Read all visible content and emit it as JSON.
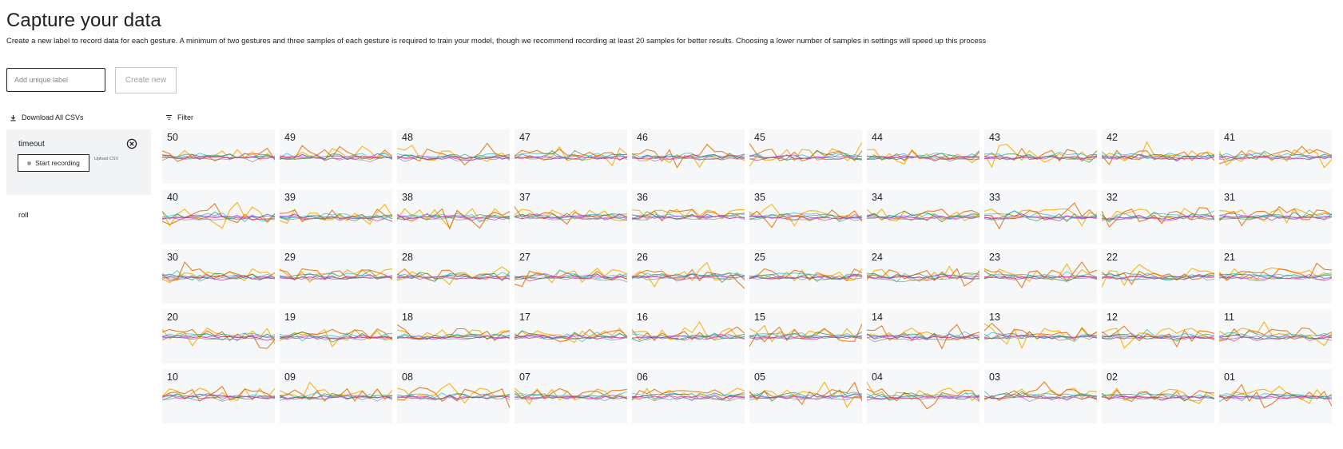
{
  "header": {
    "title": "Capture your data",
    "subtitle": "Create a new label to record data for each gesture. A minimum of two gestures and three samples of each gesture is required to train your model, though we recommend recording at least 20 samples for better results. Choosing a lower number of samples in settings will speed up this process"
  },
  "create_label": {
    "value": "",
    "placeholder": "Add unique label",
    "button": "Create new"
  },
  "toolbar": {
    "download_all": "Download All CSVs",
    "filter": "Filter"
  },
  "labels": [
    {
      "name": "timeout",
      "selected": true,
      "record_button": "Start recording",
      "upload_link": "Upload CSV"
    },
    {
      "name": "roll",
      "selected": false
    }
  ],
  "samples": [
    "50",
    "49",
    "48",
    "47",
    "46",
    "45",
    "44",
    "43",
    "42",
    "41",
    "40",
    "39",
    "38",
    "37",
    "36",
    "35",
    "34",
    "33",
    "32",
    "31",
    "30",
    "29",
    "28",
    "27",
    "26",
    "25",
    "24",
    "23",
    "22",
    "21",
    "20",
    "19",
    "18",
    "17",
    "16",
    "15",
    "14",
    "13",
    "12",
    "11",
    "10",
    "09",
    "08",
    "07",
    "06",
    "05",
    "04",
    "03",
    "02",
    "01"
  ],
  "series_colors": [
    "#f9ab00",
    "#e8710a",
    "#12b5cb",
    "#1e8e3e",
    "#9334e6",
    "#e52592",
    "#80868b"
  ]
}
